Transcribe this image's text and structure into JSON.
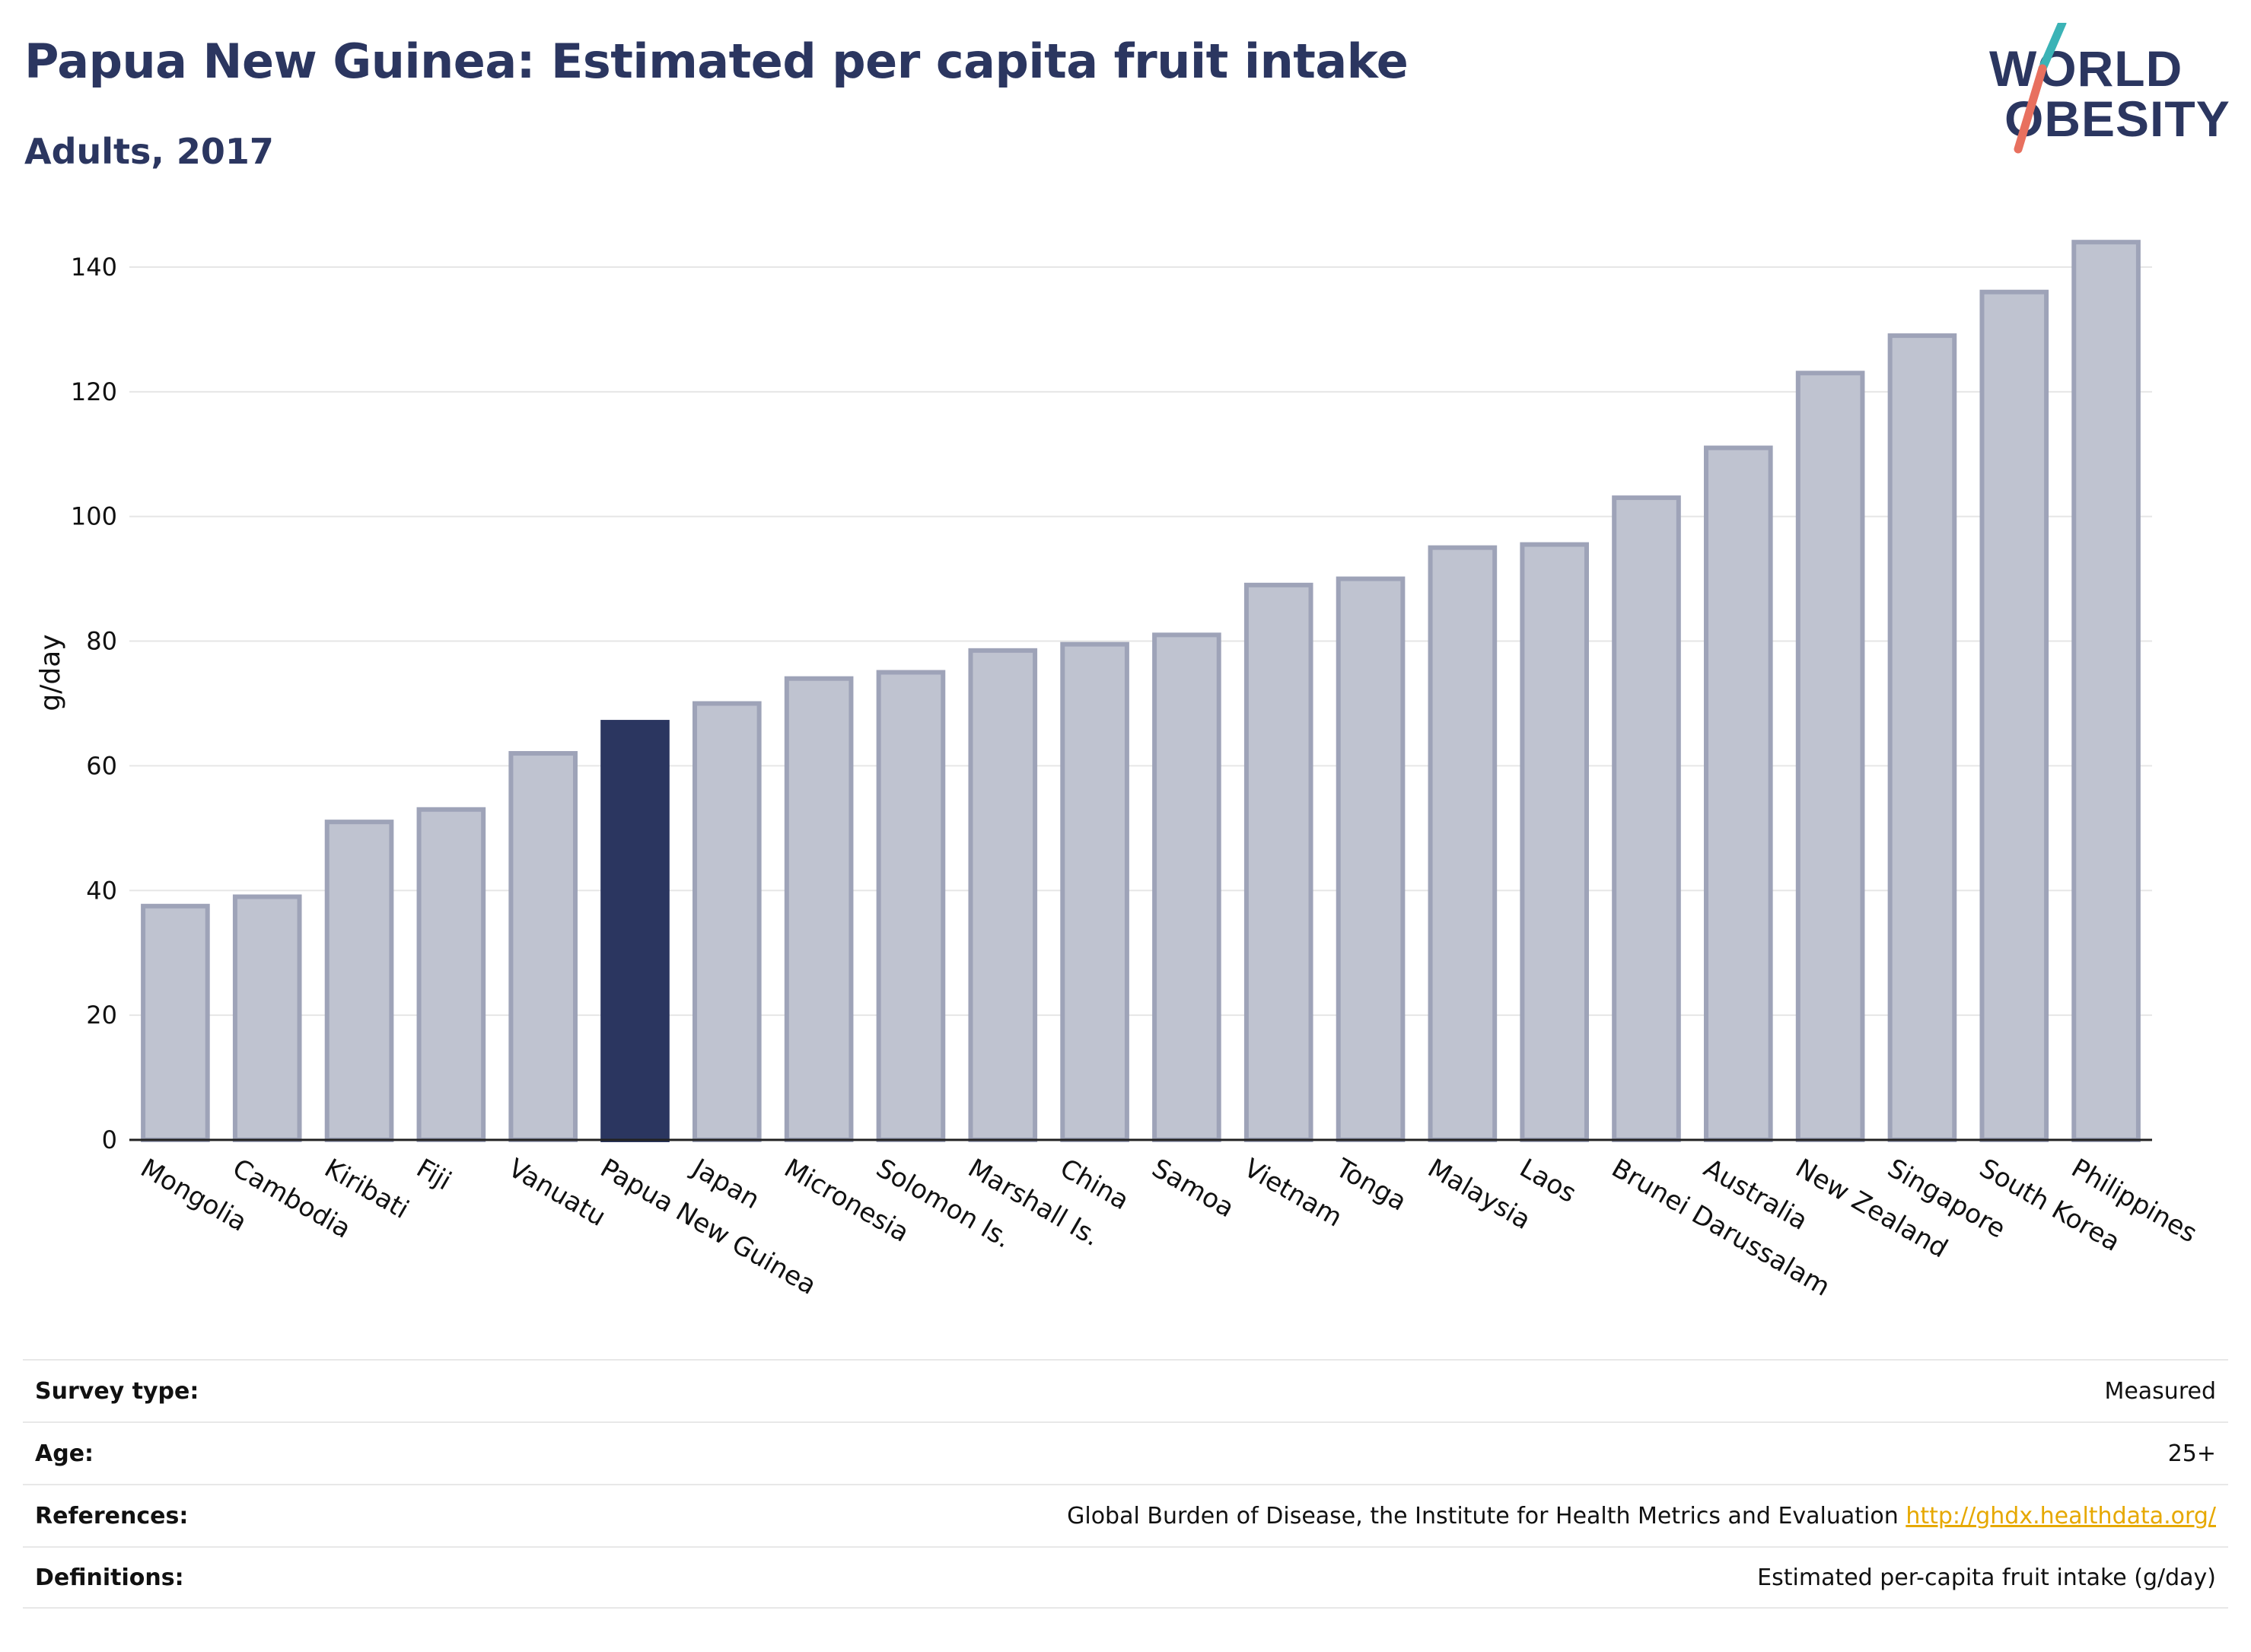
{
  "header": {
    "title": "Papua New Guinea: Estimated per capita fruit intake",
    "subtitle": "Adults, 2017"
  },
  "logo": {
    "line1": "WORLD",
    "line2": "OBESITY"
  },
  "colors": {
    "highlight": "#2b3660",
    "bar": "#bfc3d0",
    "bar_edge": "#9ea3b8",
    "link": "#e6a800",
    "logo_teal": "#3bb3b6",
    "logo_coral": "#e8705f"
  },
  "chart_data": {
    "type": "bar",
    "title": "Papua New Guinea: Estimated per capita fruit intake",
    "subtitle": "Adults, 2017",
    "xlabel": "",
    "ylabel": "g/day",
    "ylim": [
      0,
      145
    ],
    "yticks": [
      0,
      20,
      40,
      60,
      80,
      100,
      120,
      140
    ],
    "grid": true,
    "highlight": "Papua New Guinea",
    "categories": [
      "Mongolia",
      "Cambodia",
      "Kiribati",
      "Fiji",
      "Vanuatu",
      "Papua New Guinea",
      "Japan",
      "Micronesia",
      "Solomon Is.",
      "Marshall Is.",
      "China",
      "Samoa",
      "Vietnam",
      "Tonga",
      "Malaysia",
      "Laos",
      "Brunei Darussalam",
      "Australia",
      "New Zealand",
      "Singapore",
      "South Korea",
      "Philippines"
    ],
    "values": [
      37.5,
      39,
      51,
      53,
      62,
      67,
      70,
      74,
      75,
      78.5,
      79.5,
      81,
      89,
      90,
      95,
      95.5,
      103,
      111,
      123,
      129,
      136,
      144
    ]
  },
  "meta": {
    "survey_type_label": "Survey type:",
    "survey_type_value": "Measured",
    "age_label": "Age:",
    "age_value": "25+",
    "references_label": "References:",
    "references_value": "Global Burden of Disease, the Institute for Health Metrics and Evaluation",
    "references_link": "http://ghdx.healthdata.org/",
    "definitions_label": "Definitions:",
    "definitions_value": "Estimated per-capita fruit intake (g/day)"
  }
}
